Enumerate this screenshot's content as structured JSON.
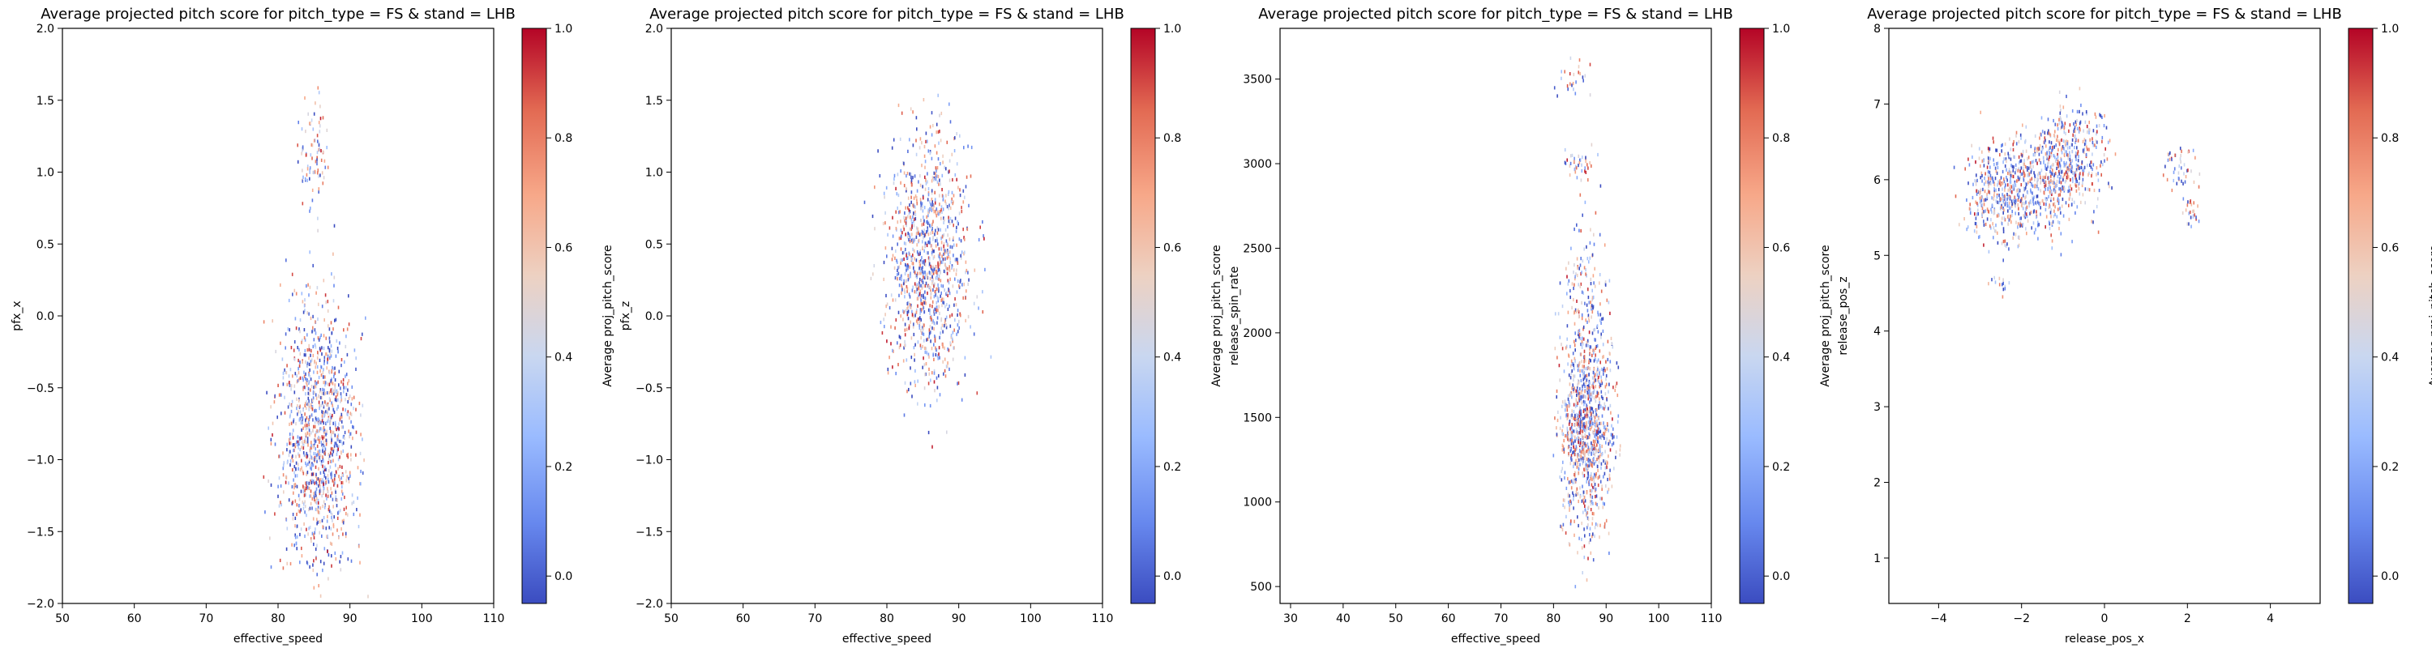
{
  "chart_data": [
    {
      "type": "heatmap",
      "title": "Average projected pitch score for pitch_type = FS & stand = LHB",
      "xlabel": "effective_speed",
      "ylabel": "pfx_x",
      "colorbar_label": "Average proj_pitch_score",
      "xlim": [
        50,
        110
      ],
      "ylim": [
        -2.0,
        2.0
      ],
      "xticks": [
        50,
        60,
        70,
        80,
        90,
        100,
        110
      ],
      "xtick_labels": [
        "50",
        "60",
        "70",
        "80",
        "90",
        "100",
        "110"
      ],
      "yticks": [
        -2.0,
        -1.5,
        -1.0,
        -0.5,
        0.0,
        0.5,
        1.0,
        1.5,
        2.0
      ],
      "ytick_labels": [
        "−2.0",
        "−1.5",
        "−1.0",
        "−0.5",
        "0.0",
        "0.5",
        "1.0",
        "1.5",
        "2.0"
      ],
      "clusters": [
        {
          "x": 85.5,
          "y": -0.95,
          "sx": 2.8,
          "sy": 0.38,
          "n": 900
        },
        {
          "x": 85.0,
          "y": -0.35,
          "sx": 2.6,
          "sy": 0.35,
          "n": 260
        },
        {
          "x": 85.0,
          "y": 1.1,
          "sx": 1.0,
          "sy": 0.22,
          "n": 90
        }
      ]
    },
    {
      "type": "heatmap",
      "title": "Average projected pitch score for pitch_type = FS & stand = LHB",
      "xlabel": "effective_speed",
      "ylabel": "pfx_z",
      "colorbar_label": "Average proj_pitch_score",
      "xlim": [
        50,
        110
      ],
      "ylim": [
        -2.0,
        2.0
      ],
      "xticks": [
        50,
        60,
        70,
        80,
        90,
        100,
        110
      ],
      "xtick_labels": [
        "50",
        "60",
        "70",
        "80",
        "90",
        "100",
        "110"
      ],
      "yticks": [
        -2.0,
        -1.5,
        -1.0,
        -0.5,
        0.0,
        0.5,
        1.0,
        1.5,
        2.0
      ],
      "ytick_labels": [
        "−2.0",
        "−1.5",
        "−1.0",
        "−0.5",
        "0.0",
        "0.5",
        "1.0",
        "1.5",
        "2.0"
      ],
      "clusters": [
        {
          "x": 85.5,
          "y": 0.4,
          "sx": 2.8,
          "sy": 0.42,
          "n": 1100
        }
      ]
    },
    {
      "type": "heatmap",
      "title": "Average projected pitch score for pitch_type = FS & stand = LHB",
      "xlabel": "effective_speed",
      "ylabel": "release_spin_rate",
      "colorbar_label": "Average proj_pitch_score",
      "xlim": [
        28,
        110
      ],
      "ylim": [
        400,
        3800
      ],
      "xticks": [
        30,
        40,
        50,
        60,
        70,
        80,
        90,
        100,
        110
      ],
      "xtick_labels": [
        "30",
        "40",
        "50",
        "60",
        "70",
        "80",
        "90",
        "100",
        "110"
      ],
      "yticks": [
        500,
        1000,
        1500,
        2000,
        2500,
        3000,
        3500
      ],
      "ytick_labels": [
        "500",
        "1000",
        "1500",
        "2000",
        "2500",
        "3000",
        "3500"
      ],
      "clusters": [
        {
          "x": 86.0,
          "y": 1450,
          "sx": 2.5,
          "sy": 320,
          "n": 1050
        },
        {
          "x": 85.5,
          "y": 2300,
          "sx": 2.0,
          "sy": 200,
          "n": 110
        },
        {
          "x": 84.5,
          "y": 3000,
          "sx": 1.6,
          "sy": 60,
          "n": 40
        },
        {
          "x": 84.0,
          "y": 3480,
          "sx": 1.5,
          "sy": 90,
          "n": 25
        }
      ]
    },
    {
      "type": "heatmap",
      "title": "Average projected pitch score for pitch_type = FS & stand = LHB",
      "xlabel": "release_pos_x",
      "ylabel": "release_pos_z",
      "colorbar_label": "Average proj_pitch_score",
      "xlim": [
        -5.2,
        5.2
      ],
      "ylim": [
        0.4,
        8.0
      ],
      "xticks": [
        -4,
        -2,
        0,
        2,
        4
      ],
      "xtick_labels": [
        "−4",
        "−2",
        "0",
        "2",
        "4"
      ],
      "yticks": [
        1,
        2,
        3,
        4,
        5,
        6,
        7,
        8
      ],
      "ytick_labels": [
        "1",
        "2",
        "3",
        "4",
        "5",
        "6",
        "7",
        "8"
      ],
      "clusters": [
        {
          "x": -2.6,
          "y": 5.8,
          "sx": 0.4,
          "sy": 0.3,
          "n": 320
        },
        {
          "x": -1.5,
          "y": 6.0,
          "sx": 0.6,
          "sy": 0.35,
          "n": 520
        },
        {
          "x": -0.8,
          "y": 6.4,
          "sx": 0.45,
          "sy": 0.3,
          "n": 260
        },
        {
          "x": -2.5,
          "y": 4.65,
          "sx": 0.12,
          "sy": 0.1,
          "n": 14
        },
        {
          "x": 1.8,
          "y": 6.15,
          "sx": 0.25,
          "sy": 0.15,
          "n": 45
        },
        {
          "x": 2.05,
          "y": 5.6,
          "sx": 0.1,
          "sy": 0.1,
          "n": 24
        }
      ]
    }
  ],
  "colorbar": {
    "vmin": -0.05,
    "vmax": 1.0,
    "ticks": [
      0.0,
      0.2,
      0.4,
      0.6,
      0.8,
      1.0
    ],
    "tick_labels": [
      "0.0",
      "0.2",
      "0.4",
      "0.6",
      "0.8",
      "1.0"
    ],
    "colormap": [
      "#3b4cc0",
      "#6788ee",
      "#9abbff",
      "#c9d7f0",
      "#edd1c2",
      "#f7a889",
      "#e26952",
      "#b40426"
    ]
  }
}
